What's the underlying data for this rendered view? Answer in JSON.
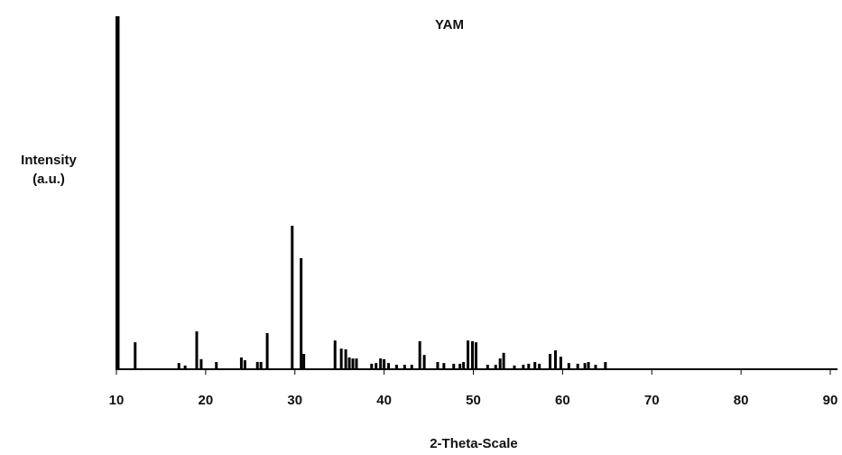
{
  "chart_data": {
    "type": "stick",
    "title": "YAM",
    "x_label": "2-Theta-Scale",
    "y_label": [
      "Intensity",
      "(a.u.)"
    ],
    "color": "#000000",
    "x": [
      10.2,
      12.1,
      17.0,
      17.7,
      19.0,
      19.5,
      21.2,
      24.0,
      24.4,
      25.8,
      26.2,
      26.9,
      29.7,
      30.7,
      31.0,
      34.5,
      35.2,
      35.7,
      36.1,
      36.5,
      36.9,
      38.6,
      39.1,
      39.6,
      40.0,
      40.5,
      41.4,
      42.3,
      43.1,
      44.0,
      44.5,
      46.0,
      46.7,
      47.8,
      48.5,
      48.9,
      49.4,
      49.9,
      50.3,
      51.6,
      52.5,
      53.0,
      53.4,
      54.6,
      55.6,
      56.2,
      56.9,
      57.4,
      58.6,
      59.2,
      59.8,
      60.7,
      61.7,
      62.5,
      62.9,
      63.7,
      64.8
    ],
    "values": [
      100,
      7.4,
      1.5,
      0.8,
      10.5,
      2.6,
      1.8,
      3.1,
      2.3,
      1.8,
      1.8,
      10,
      40.5,
      31.3,
      4.1,
      7.9,
      5.6,
      5.4,
      3.1,
      2.8,
      2.8,
      1.3,
      1.5,
      2.8,
      2.6,
      1.5,
      1.0,
      1.0,
      1.0,
      7.7,
      3.8,
      1.8,
      1.5,
      1.3,
      1.3,
      1.8,
      7.9,
      7.7,
      7.4,
      1.0,
      1.0,
      2.8,
      4.4,
      0.8,
      1.0,
      1.3,
      1.8,
      1.3,
      4.1,
      5.1,
      3.3,
      1.5,
      1.3,
      1.5,
      1.8,
      1.0,
      1.8
    ],
    "xlim": [
      10,
      90
    ],
    "xticks": [
      10,
      20,
      30,
      40,
      50,
      60,
      70,
      80,
      90
    ],
    "ylim": [
      0,
      100
    ]
  }
}
